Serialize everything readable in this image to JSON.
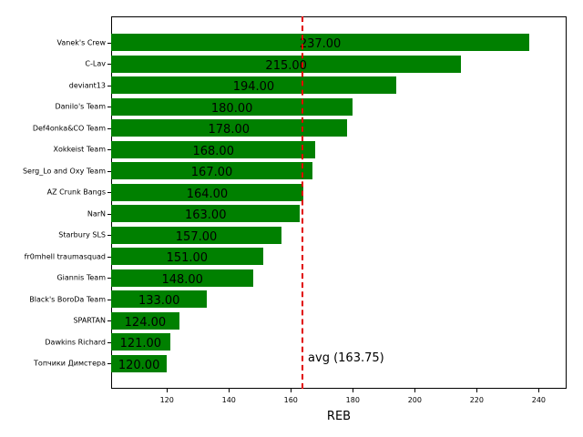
{
  "chart_data": {
    "type": "bar",
    "orientation": "horizontal",
    "title": "",
    "xlabel": "REB",
    "ylabel": "",
    "xlim": [
      102,
      249
    ],
    "xticks": [
      120,
      140,
      160,
      180,
      200,
      220,
      240
    ],
    "bar_color": "#008000",
    "categories": [
      "Vanek's Crew",
      "C-Lav",
      "deviant13",
      "Danilo's Team",
      "Def4onka&CO Team",
      "Xokkeist Team",
      "Serg_Lo and Oxy Team",
      "AZ Crunk Bangs",
      "NarN",
      "Starbury SLS",
      "fr0mhell traumasquad",
      "Giannis Team",
      "Black's BoroDa Team",
      "SPARTAN",
      "Dawkins Richard",
      "Топчики Димстера"
    ],
    "values": [
      237,
      215,
      194,
      180,
      178,
      168,
      167,
      164,
      163,
      157,
      151,
      148,
      133,
      124,
      121,
      120
    ],
    "value_labels": [
      "237.00",
      "215.00",
      "194.00",
      "180.00",
      "178.00",
      "168.00",
      "167.00",
      "164.00",
      "163.00",
      "157.00",
      "151.00",
      "148.00",
      "133.00",
      "124.00",
      "121.00",
      "120.00"
    ],
    "average": {
      "value": 163.75,
      "label": "avg (163.75)",
      "color": "#e00000",
      "style": "dashed"
    },
    "grid": false
  }
}
